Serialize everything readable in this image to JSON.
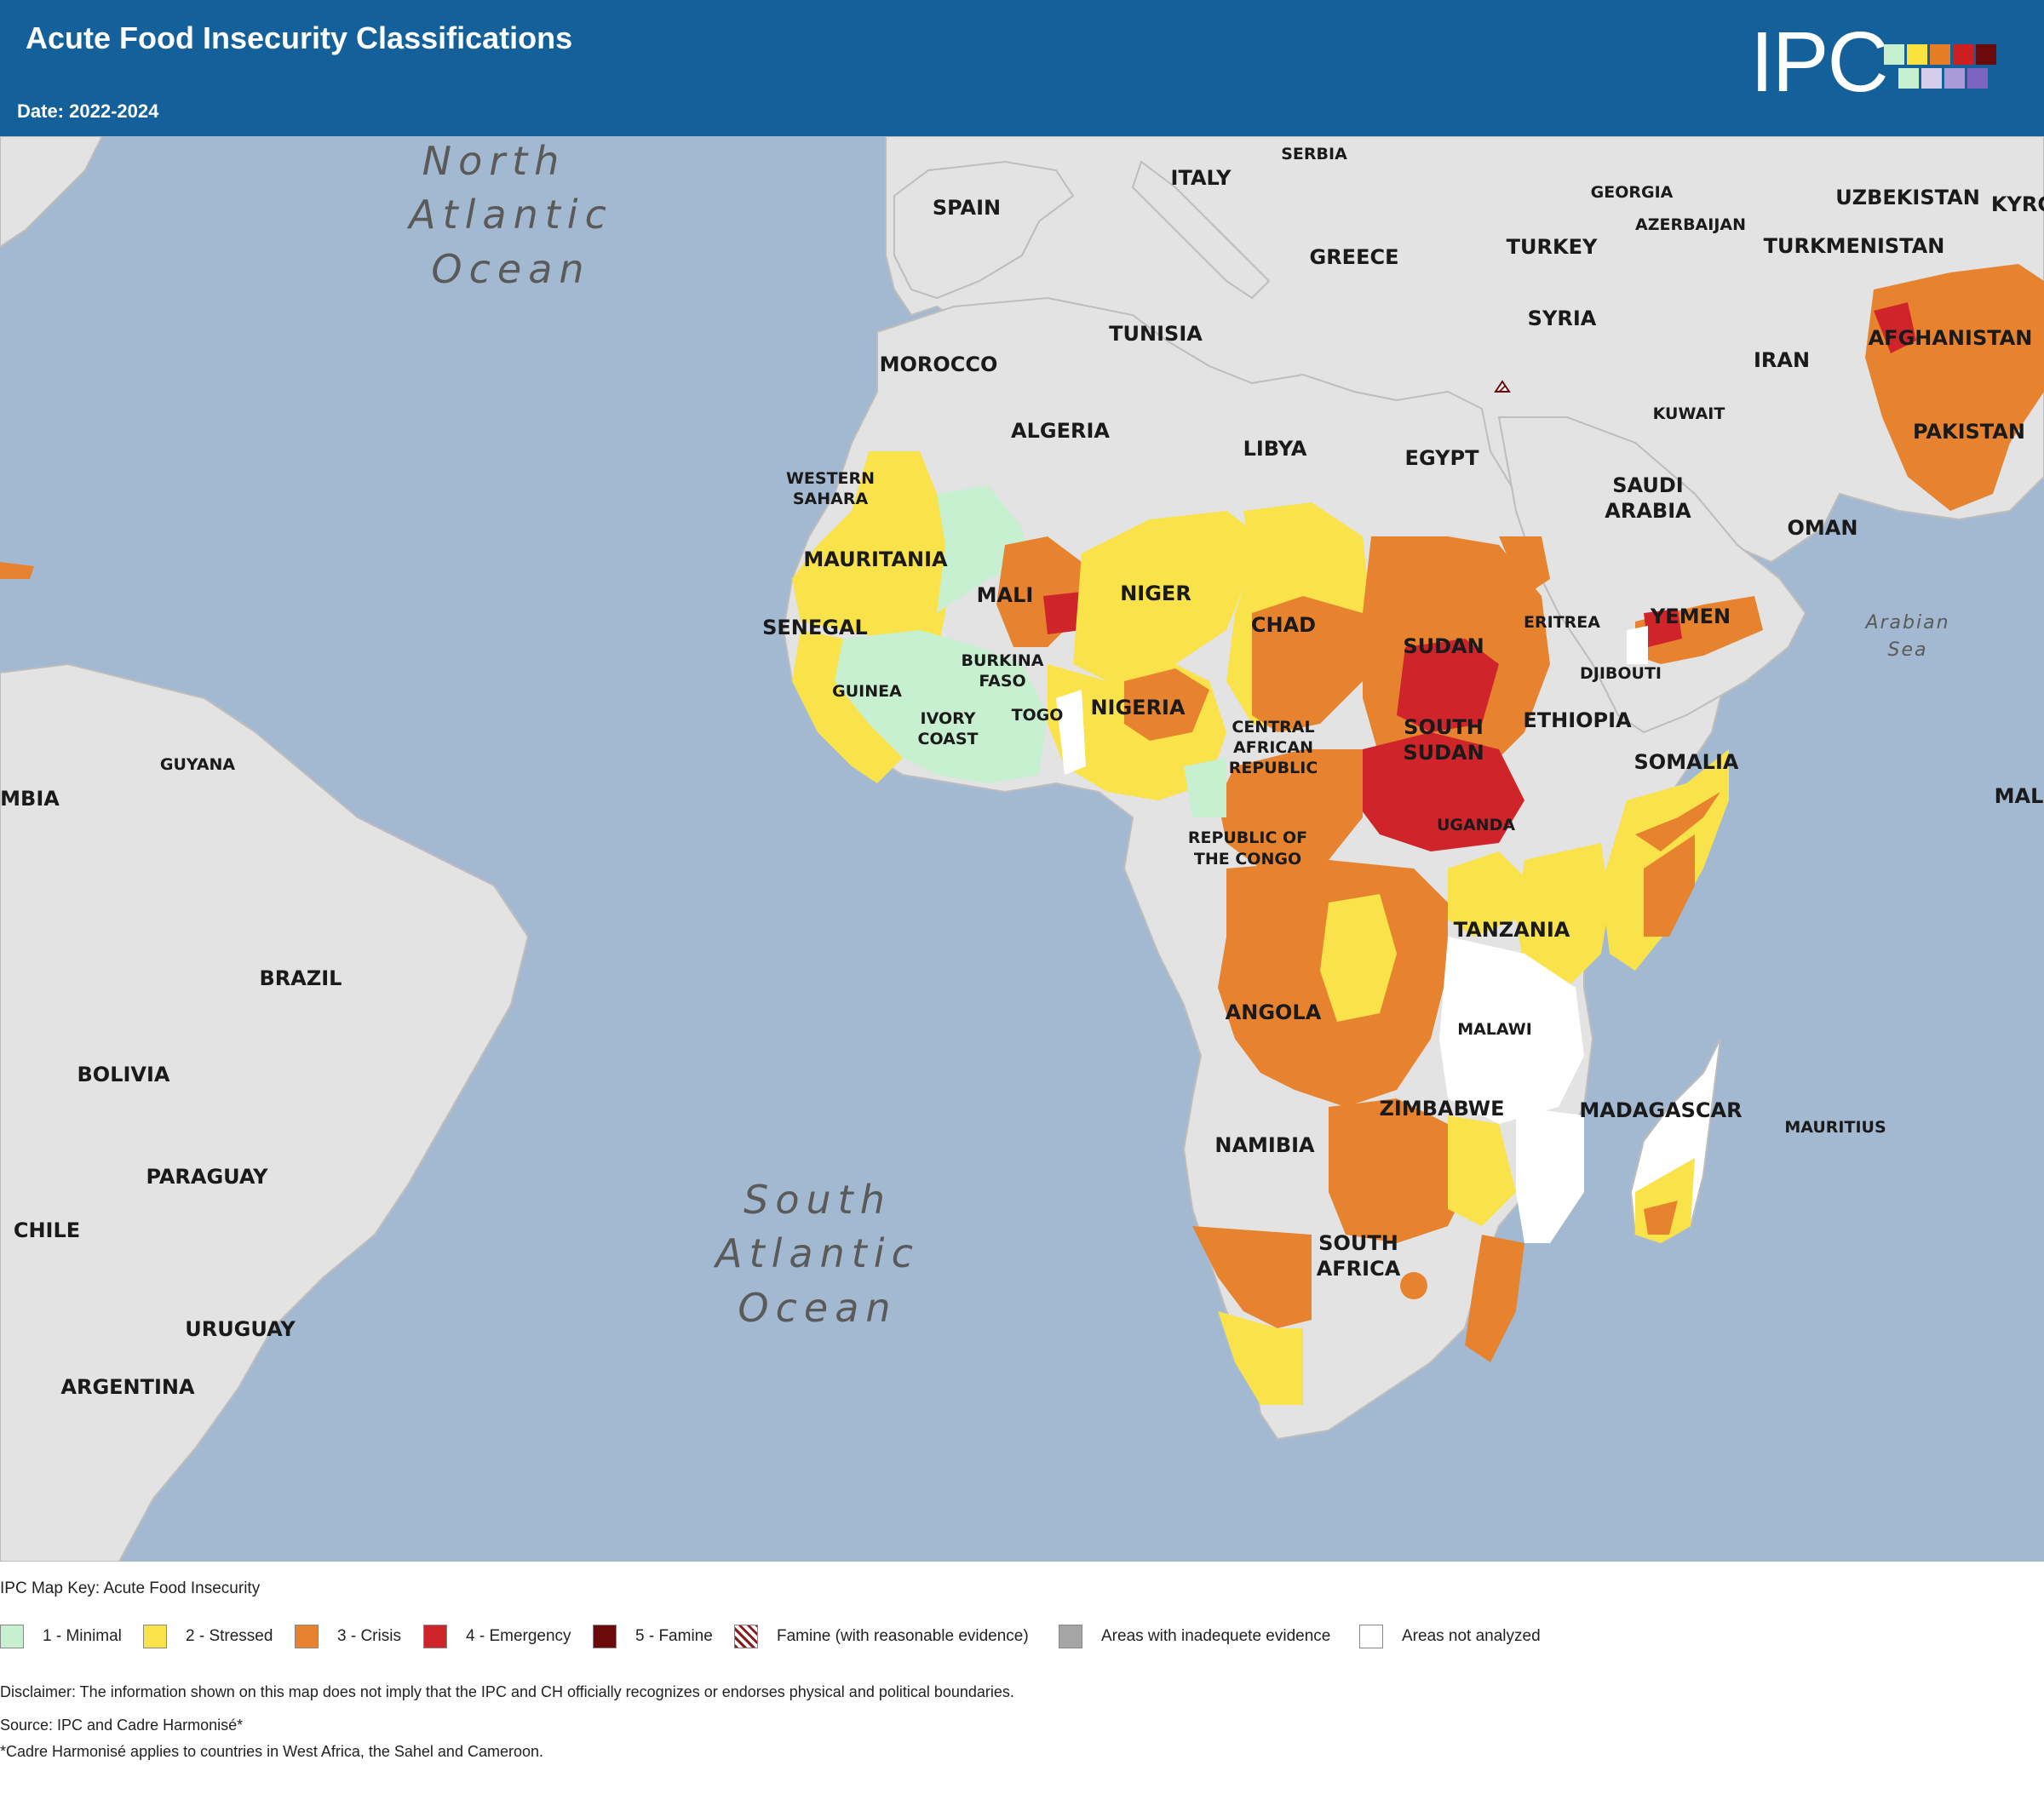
{
  "header": {
    "title": "Acute Food Insecurity Classifications",
    "date": "Date: 2022-2024",
    "logo": "IPC",
    "logo_colors_top": [
      "#c6f0cf",
      "#fbe23f",
      "#e57c26",
      "#cd1f1f",
      "#6b0a0a"
    ],
    "logo_colors_bottom": [
      "#c6f0cf",
      "#d4cdea",
      "#a99ad8",
      "#7a64c0"
    ]
  },
  "colors": {
    "ocean": "#a3b9d1",
    "land": "#e3e3e3",
    "minimal": "#c6f0cf",
    "stressed": "#f9e24a",
    "crisis": "#e7832f",
    "emergency": "#d0242b",
    "famine": "#6a0a0a",
    "inadequate": "#a5a5a5",
    "not_analyzed": "#ffffff"
  },
  "map": {
    "oceans": {
      "north_atlantic": [
        "North",
        "Atlantic",
        "Ocean"
      ],
      "south_atlantic": [
        "South",
        "Atlantic",
        "Ocean"
      ],
      "arabian_sea": [
        "Arabian",
        "Sea"
      ]
    },
    "countries": {
      "spain": "SPAIN",
      "italy": "ITALY",
      "serbia": "SERBIA",
      "greece": "GREECE",
      "turkey": "TURKEY",
      "georgia": "GEORGIA",
      "azerbaijan": "AZERBAIJAN",
      "uzbekistan": "UZBEKISTAN",
      "kyrgyzstan": "KYRG",
      "turkmenistan": "TURKMENISTAN",
      "syria": "SYRIA",
      "afghanistan": "AFGHANISTAN",
      "iran": "IRAN",
      "kuwait": "KUWAIT",
      "pakistan": "PAKISTAN",
      "tunisia": "TUNISIA",
      "morocco": "MOROCCO",
      "algeria": "ALGERIA",
      "libya": "LIBYA",
      "egypt": "EGYPT",
      "saudi_1": "SAUDI",
      "saudi_2": "ARABIA",
      "oman": "OMAN",
      "western_sahara_1": "WESTERN",
      "western_sahara_2": "SAHARA",
      "mauritania": "MAURITANIA",
      "mali": "MALI",
      "niger": "NIGER",
      "chad": "CHAD",
      "sudan": "SUDAN",
      "eritrea": "ERITREA",
      "yemen": "YEMEN",
      "senegal": "SENEGAL",
      "burkina_1": "BURKINA",
      "burkina_2": "FASO",
      "djibouti": "DJIBOUTI",
      "guinea": "GUINEA",
      "nigeria": "NIGERIA",
      "ethiopia": "ETHIOPIA",
      "ivory_1": "IVORY",
      "ivory_2": "COAST",
      "togo": "TOGO",
      "car_1": "CENTRAL",
      "car_2": "AFRICAN",
      "car_3": "REPUBLIC",
      "south_sudan_1": "SOUTH",
      "south_sudan_2": "SUDAN",
      "somalia": "SOMALIA",
      "guyana": "GUYANA",
      "colombia": "MBIA",
      "maldives": "MALI",
      "congo_1": "REPUBLIC OF",
      "congo_2": "THE CONGO",
      "uganda": "UGANDA",
      "tanzania": "TANZANIA",
      "brazil": "BRAZIL",
      "angola": "ANGOLA",
      "malawi": "MALAWI",
      "bolivia": "BOLIVIA",
      "zimbabwe": "ZIMBABWE",
      "madagascar": "MADAGASCAR",
      "mauritius": "MAURITIUS",
      "namibia": "NAMIBIA",
      "paraguay": "PARAGUAY",
      "chile": "CHILE",
      "south_africa_1": "SOUTH",
      "south_africa_2": "AFRICA",
      "uruguay": "URUGUAY",
      "argentina": "ARGENTINA"
    }
  },
  "legend": {
    "title": "IPC Map Key: Acute Food Insecurity",
    "items": [
      {
        "label": "1 - Minimal",
        "color": "#c6f0cf"
      },
      {
        "label": "2 - Stressed",
        "color": "#f9e24a"
      },
      {
        "label": "3 - Crisis",
        "color": "#e7832f"
      },
      {
        "label": "4 - Emergency",
        "color": "#d0242b"
      },
      {
        "label": "5 - Famine",
        "color": "#6a0a0a"
      },
      {
        "label": "Famine (with reasonable evidence)",
        "color": "hatched"
      },
      {
        "label": "Areas with inadequete evidence",
        "color": "#a5a5a5"
      },
      {
        "label": "Areas not analyzed",
        "color": "#ffffff"
      }
    ]
  },
  "footer": {
    "disclaimer": "Disclaimer: The information shown on this map does not imply that the IPC and CH officially recognizes or endorses physical and political boundaries.",
    "source": "Source: IPC and Cadre Harmonisé*",
    "note": "*Cadre Harmonisé applies to countries in West Africa, the Sahel and Cameroon."
  }
}
